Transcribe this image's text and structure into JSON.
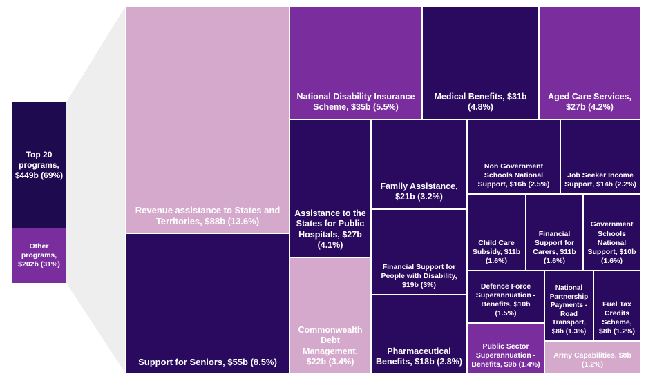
{
  "colors": {
    "dark": "#2a0a5e",
    "darkest": "#1e0a4f",
    "purple": "#7a2e9e",
    "light": "#d4a9cc",
    "funnel": "#eeeeee"
  },
  "chart_data": {
    "type": "treemap",
    "summary_bar": [
      {
        "label": "Top 20 programs, $449b (69%)",
        "value": 449,
        "share_pct": 69,
        "color": "#1e0a4f"
      },
      {
        "label": "Other programs, $202b (31%)",
        "value": 202,
        "share_pct": 31,
        "color": "#7a2e9e"
      }
    ],
    "programs": [
      {
        "id": "revenue-assistance",
        "label": "Revenue assistance to States and Territories, $88b (13.6%)",
        "value": 88,
        "share_pct": 13.6,
        "color": "#d4a9cc"
      },
      {
        "id": "support-seniors",
        "label": "Support for Seniors, $55b (8.5%)",
        "value": 55,
        "share_pct": 8.5,
        "color": "#2a0a5e"
      },
      {
        "id": "ndis",
        "label": "National Disability Insurance Scheme, $35b (5.5%)",
        "value": 35,
        "share_pct": 5.5,
        "color": "#7a2e9e"
      },
      {
        "id": "medical-benefits",
        "label": "Medical Benefits, $31b (4.8%)",
        "value": 31,
        "share_pct": 4.8,
        "color": "#2a0a5e"
      },
      {
        "id": "aged-care",
        "label": "Aged Care Services, $27b (4.2%)",
        "value": 27,
        "share_pct": 4.2,
        "color": "#7a2e9e"
      },
      {
        "id": "public-hospitals",
        "label": "Assistance to the States for Public Hospitals, $27b (4.1%)",
        "value": 27,
        "share_pct": 4.1,
        "color": "#2a0a5e"
      },
      {
        "id": "debt-management",
        "label": "Commonwealth Debt Management, $22b (3.4%)",
        "value": 22,
        "share_pct": 3.4,
        "color": "#d4a9cc"
      },
      {
        "id": "family-assistance",
        "label": "Family Assistance, $21b (3.2%)",
        "value": 21,
        "share_pct": 3.2,
        "color": "#2a0a5e"
      },
      {
        "id": "disability-support",
        "label": "Financial Support for People with Disability, $19b (3%)",
        "value": 19,
        "share_pct": 3,
        "color": "#2a0a5e"
      },
      {
        "id": "pharmaceutical",
        "label": "Pharmaceutical Benefits, $18b (2.8%)",
        "value": 18,
        "share_pct": 2.8,
        "color": "#2a0a5e"
      },
      {
        "id": "non-gov-schools",
        "label": "Non Government Schools National Support, $16b (2.5%)",
        "value": 16,
        "share_pct": 2.5,
        "color": "#2a0a5e"
      },
      {
        "id": "job-seeker",
        "label": "Job Seeker Income Support, $14b (2.2%)",
        "value": 14,
        "share_pct": 2.2,
        "color": "#2a0a5e"
      },
      {
        "id": "child-care",
        "label": "Child Care Subsidy, $11b (1.6%)",
        "value": 11,
        "share_pct": 1.6,
        "color": "#2a0a5e"
      },
      {
        "id": "carers",
        "label": "Financial Support for Carers, $11b (1.6%)",
        "value": 11,
        "share_pct": 1.6,
        "color": "#2a0a5e"
      },
      {
        "id": "gov-schools",
        "label": "Government Schools National Support, $10b (1.6%)",
        "value": 10,
        "share_pct": 1.6,
        "color": "#2a0a5e"
      },
      {
        "id": "defence-super",
        "label": "Defence Force Superannuation - Benefits, $10b (1.5%)",
        "value": 10,
        "share_pct": 1.5,
        "color": "#2a0a5e"
      },
      {
        "id": "road-transport",
        "label": "National Partnership Payments - Road Transport, $8b (1.3%)",
        "value": 8,
        "share_pct": 1.3,
        "color": "#2a0a5e"
      },
      {
        "id": "fuel-tax",
        "label": "Fuel Tax Credits Scheme, $8b (1.2%)",
        "value": 8,
        "share_pct": 1.2,
        "color": "#2a0a5e"
      },
      {
        "id": "public-sector-super",
        "label": "Public Sector Superannuation - Benefits, $9b (1.4%)",
        "value": 9,
        "share_pct": 1.4,
        "color": "#7a2e9e"
      },
      {
        "id": "army",
        "label": "Army Capabilities, $8b (1.2%)",
        "value": 8,
        "share_pct": 1.2,
        "color": "#d4a9cc"
      }
    ]
  }
}
